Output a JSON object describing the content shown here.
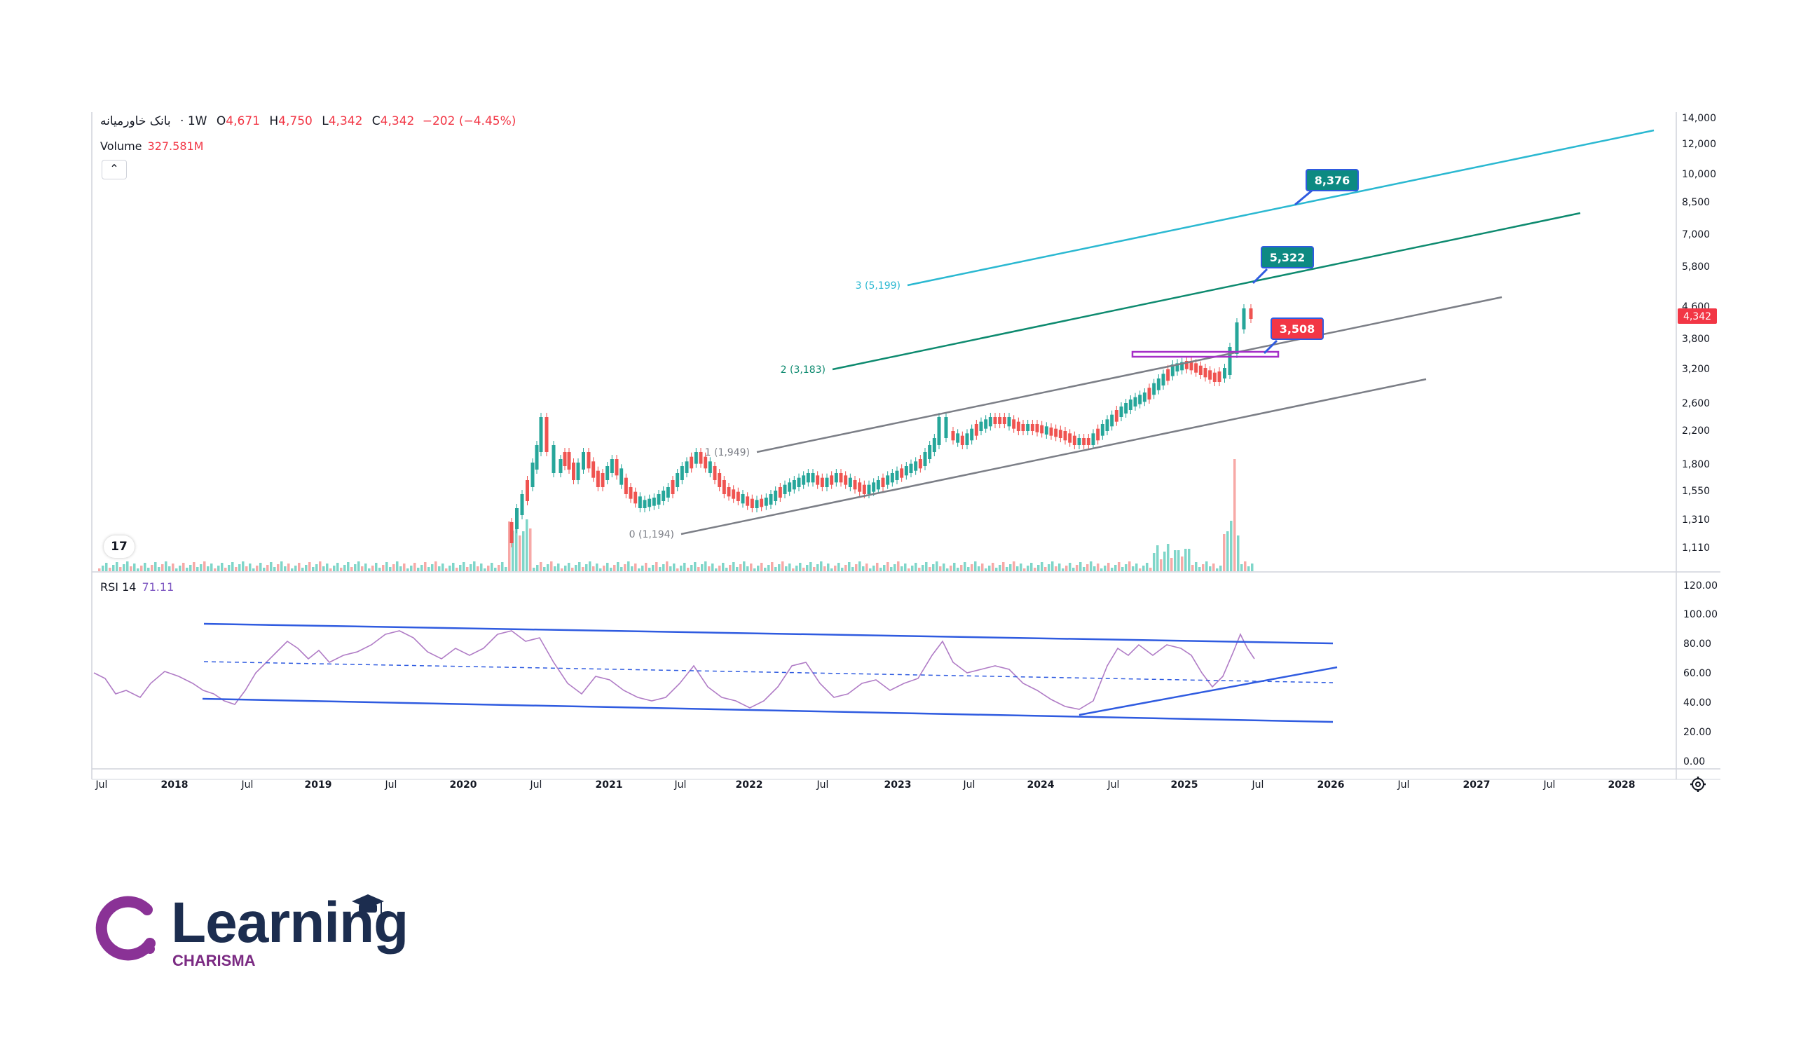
{
  "header": {
    "symbol": "بانک خاورمیانه",
    "interval": "· 1W",
    "open_label": "O",
    "open": "4,671",
    "high_label": "H",
    "high": "4,750",
    "low_label": "L",
    "low": "4,342",
    "close_label": "C",
    "close": "4,342",
    "change": "−202 (−4.45%)"
  },
  "volume_legend": {
    "label": "Volume",
    "value": "327.581M"
  },
  "rsi_legend": {
    "label": "RSI 14",
    "value": "71.11"
  },
  "collapse_icon": "chevron-up-icon",
  "price_axis": {
    "ticks": [
      "14,000",
      "12,000",
      "10,000",
      "8,500",
      "7,000",
      "5,800",
      "4,600",
      "3,800",
      "3,200",
      "2,600",
      "2,200",
      "1,800",
      "1,550",
      "1,310",
      "1,110"
    ],
    "current_price": "4,342"
  },
  "rsi_axis": {
    "ticks": [
      "120.00",
      "100.00",
      "80.00",
      "60.00",
      "40.00",
      "20.00",
      "0.00"
    ]
  },
  "time_axis": {
    "labels": [
      "Jul",
      "2018",
      "Jul",
      "2019",
      "Jul",
      "2020",
      "Jul",
      "2021",
      "Jul",
      "2022",
      "Jul",
      "2023",
      "Jul",
      "2024",
      "Jul",
      "2025",
      "Jul",
      "2026",
      "Jul",
      "2027",
      "Jul",
      "2028"
    ]
  },
  "channel_labels": [
    "3 (5,199)",
    "2 (3,183)",
    "1 (1,949)",
    "0 (1,194)"
  ],
  "targets": [
    {
      "text": "8,376",
      "color": "#0d8a82"
    },
    {
      "text": "5,322",
      "color": "#0d8a82"
    },
    {
      "text": "3,508",
      "color": "#f23645"
    }
  ],
  "tv_badge": "17",
  "settings_icon": "gear-icon",
  "colors": {
    "up": "#26a69a",
    "down": "#ef5350",
    "rsi": "#b07cc6",
    "trend": "#2f5be0",
    "fib3": "#2ab8d1",
    "fib2": "#0d8a6f",
    "fib_gray": "#7b7e86"
  },
  "brand": {
    "word": "Learning",
    "sub": "CHARISMA",
    "color_dark": "#1c2d4f",
    "color_purple": "#8a3296"
  }
}
